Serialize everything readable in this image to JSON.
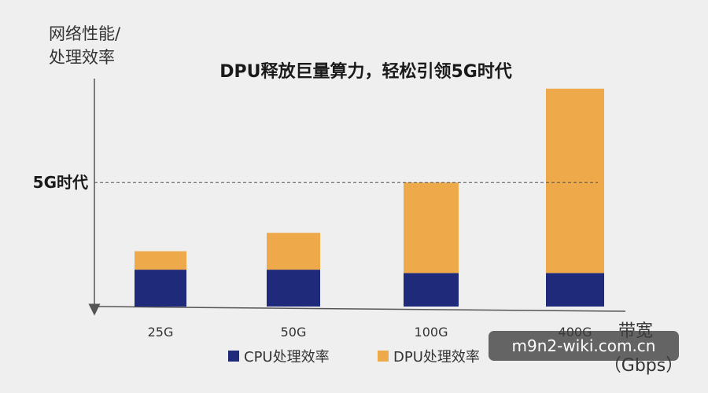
{
  "chart_data": {
    "type": "bar",
    "stacked": true,
    "title": "DPU释放巨量算力，轻松引领5G时代",
    "ylabel_lines": [
      "网络性能/",
      "处理效率"
    ],
    "xlabel_lines": [
      "带宽",
      "（Gbps）"
    ],
    "categories": [
      "25G",
      "50G",
      "100G",
      "400G"
    ],
    "series": [
      {
        "name": "CPU处理效率",
        "color": "#1f2a7a",
        "values": [
          11,
          11,
          10,
          10
        ]
      },
      {
        "name": "DPU处理效率",
        "color": "#eda94a",
        "values": [
          5.5,
          11,
          27,
          55
        ]
      }
    ],
    "ylim": [
      0,
      68
    ],
    "reference_line": {
      "label": "5G时代",
      "value": 37
    },
    "legend_position": "bottom",
    "grid": false
  },
  "watermark": "m9n2-wiki.com.cn"
}
